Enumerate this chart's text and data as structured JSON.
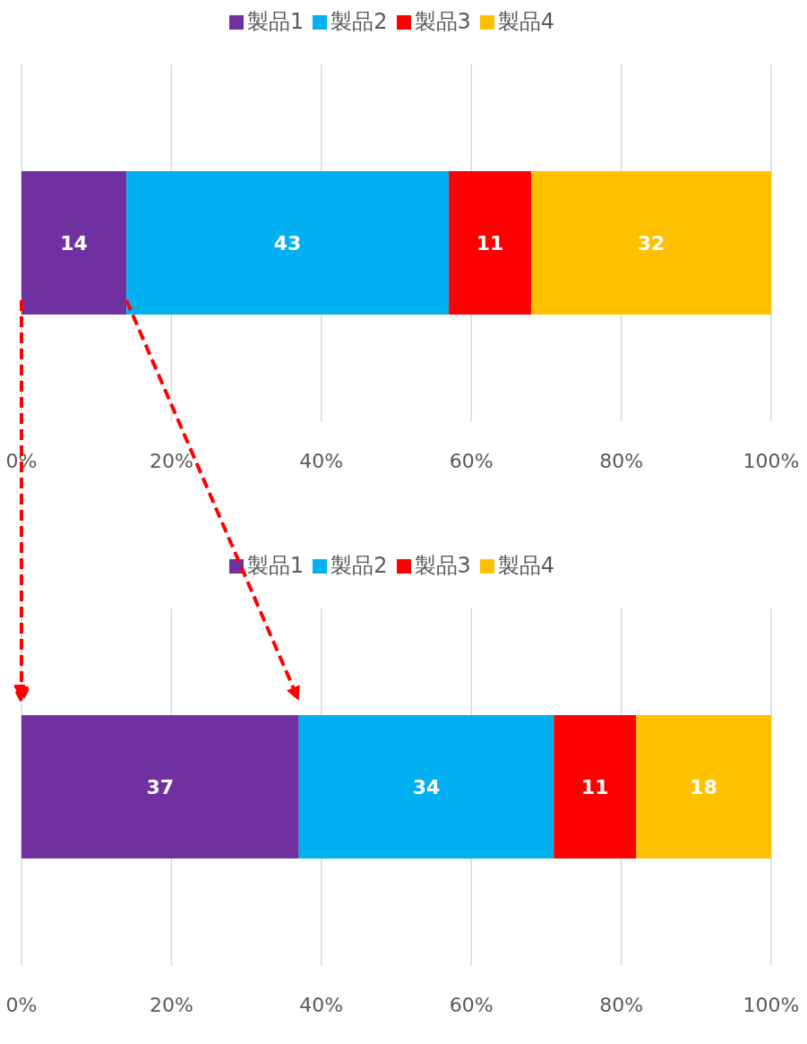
{
  "chart_data": [
    {
      "type": "bar",
      "orientation": "horizontal",
      "stacked": true,
      "categories": [
        null
      ],
      "series": [
        {
          "name": "製品1",
          "color": "#7030a0",
          "values": [
            14
          ]
        },
        {
          "name": "製品2",
          "color": "#00b0f0",
          "values": [
            43
          ]
        },
        {
          "name": "製品3",
          "color": "#ff0000",
          "values": [
            11
          ]
        },
        {
          "name": "製品4",
          "color": "#ffc000",
          "values": [
            32
          ]
        }
      ],
      "xlim": [
        0,
        100
      ],
      "xticks": [
        {
          "value": 0,
          "label": "0%"
        },
        {
          "value": 20,
          "label": "20%"
        },
        {
          "value": 40,
          "label": "40%"
        },
        {
          "value": 60,
          "label": "60%"
        },
        {
          "value": 80,
          "label": "80%"
        },
        {
          "value": 100,
          "label": "100%"
        }
      ],
      "grid": "x",
      "legend": "top",
      "data_labels": true
    },
    {
      "type": "bar",
      "orientation": "horizontal",
      "stacked": true,
      "categories": [
        null
      ],
      "series": [
        {
          "name": "製品1",
          "color": "#7030a0",
          "values": [
            37
          ]
        },
        {
          "name": "製品2",
          "color": "#00b0f0",
          "values": [
            34
          ]
        },
        {
          "name": "製品3",
          "color": "#ff0000",
          "values": [
            11
          ]
        },
        {
          "name": "製品4",
          "color": "#ffc000",
          "values": [
            18
          ]
        }
      ],
      "xlim": [
        0,
        100
      ],
      "xticks": [
        {
          "value": 0,
          "label": "0%"
        },
        {
          "value": 20,
          "label": "20%"
        },
        {
          "value": 40,
          "label": "40%"
        },
        {
          "value": 60,
          "label": "60%"
        },
        {
          "value": 80,
          "label": "80%"
        },
        {
          "value": 100,
          "label": "100%"
        }
      ],
      "grid": "x",
      "legend": "top",
      "data_labels": true
    }
  ]
}
